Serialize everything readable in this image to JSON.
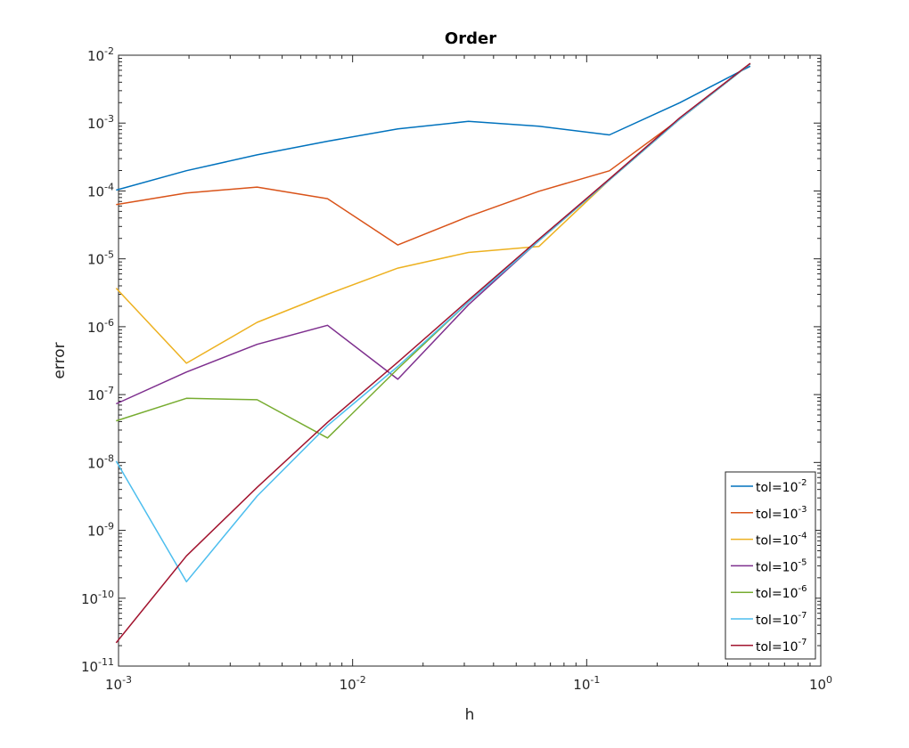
{
  "chart_data": {
    "type": "line",
    "title": "Order",
    "xlabel": "h",
    "ylabel": "error",
    "xscale": "log",
    "yscale": "log",
    "xlim": [
      0.001,
      1
    ],
    "ylim": [
      1e-11,
      0.01
    ],
    "x_ticks": [
      {
        "base": "10",
        "exp": "-3",
        "value": 0.001
      },
      {
        "base": "10",
        "exp": "-2",
        "value": 0.01
      },
      {
        "base": "10",
        "exp": "-1",
        "value": 0.1
      },
      {
        "base": "10",
        "exp": "0",
        "value": 1
      }
    ],
    "y_ticks": [
      {
        "base": "10",
        "exp": "-11",
        "value": 1e-11
      },
      {
        "base": "10",
        "exp": "-10",
        "value": 1e-10
      },
      {
        "base": "10",
        "exp": "-9",
        "value": 1e-09
      },
      {
        "base": "10",
        "exp": "-8",
        "value": 1e-08
      },
      {
        "base": "10",
        "exp": "-7",
        "value": 1e-07
      },
      {
        "base": "10",
        "exp": "-6",
        "value": 1e-06
      },
      {
        "base": "10",
        "exp": "-5",
        "value": 1e-05
      },
      {
        "base": "10",
        "exp": "-4",
        "value": 0.0001
      },
      {
        "base": "10",
        "exp": "-3",
        "value": 0.001
      },
      {
        "base": "10",
        "exp": "-2",
        "value": 0.01
      }
    ],
    "grid": false,
    "legend_position": "bottom-right",
    "x": [
      0.000977,
      0.00195,
      0.00391,
      0.00781,
      0.0156,
      0.03125,
      0.0625,
      0.125,
      0.25,
      0.5
    ],
    "series": [
      {
        "name": "tol=10",
        "exp": "-2",
        "color": "#0072BD",
        "values": [
          0.000103,
          0.000199,
          0.00034,
          0.00054,
          0.00082,
          0.00106,
          0.0009,
          0.00067,
          0.002,
          0.0069
        ]
      },
      {
        "name": "tol=10",
        "exp": "-3",
        "color": "#D95319",
        "values": [
          6.3e-05,
          9.3e-05,
          0.000114,
          7.7e-05,
          1.6e-05,
          4.2e-05,
          9.9e-05,
          0.000198,
          0.00115,
          0.0075
        ]
      },
      {
        "name": "tol=10",
        "exp": "-4",
        "color": "#EDB120",
        "values": [
          3.7e-06,
          2.9e-07,
          1.16e-06,
          3e-06,
          7.3e-06,
          1.24e-05,
          1.52e-05,
          0.000145,
          0.00115,
          0.0075
        ]
      },
      {
        "name": "tol=10",
        "exp": "-5",
        "color": "#7E2F8E",
        "values": [
          7.3e-08,
          2.15e-07,
          5.5e-07,
          1.05e-06,
          1.68e-07,
          2.1e-06,
          1.85e-05,
          0.000145,
          0.00115,
          0.0075
        ]
      },
      {
        "name": "tol=10",
        "exp": "-6",
        "color": "#77AC30",
        "values": [
          4.1e-08,
          8.8e-08,
          8.4e-08,
          2.3e-08,
          2.4e-07,
          2.3e-06,
          1.85e-05,
          0.000145,
          0.00115,
          0.0075
        ]
      },
      {
        "name": "tol=10",
        "exp": "-7",
        "color": "#4DBEEE",
        "values": [
          1.05e-08,
          1.75e-10,
          3.2e-09,
          3.5e-08,
          2.6e-07,
          2.3e-06,
          1.85e-05,
          0.000145,
          0.00115,
          0.0075
        ]
      },
      {
        "name": "tol=10",
        "exp": "-7",
        "color": "#A2142F",
        "values": [
          2.2e-11,
          4.2e-10,
          4.3e-09,
          3.9e-08,
          3e-07,
          2.45e-06,
          1.95e-05,
          0.00015,
          0.0012,
          0.0076
        ]
      }
    ]
  }
}
